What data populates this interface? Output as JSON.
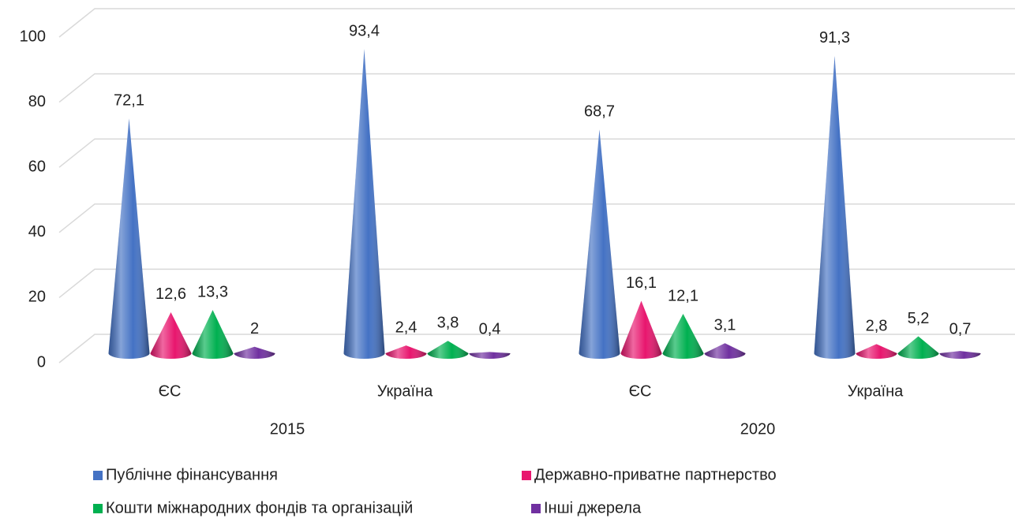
{
  "chart_data": {
    "type": "cone",
    "categories": [
      "ЄС",
      "Україна",
      "ЄС",
      "Україна"
    ],
    "category_groups": [
      "2015",
      "2020"
    ],
    "series": [
      {
        "name": "Публічне фінансування",
        "color": "#4472c4",
        "values": [
          72.1,
          93.4,
          68.7,
          91.3
        ],
        "value_labels": [
          "72,1",
          "93,4",
          "68,7",
          "91,3"
        ]
      },
      {
        "name": "Державно-приватне партнерство",
        "color": "#e8166e",
        "values": [
          12.6,
          2.4,
          16.1,
          2.8
        ],
        "value_labels": [
          "12,6",
          "2,4",
          "16,1",
          "2,8"
        ]
      },
      {
        "name": "Кошти міжнародних фондів та організацій",
        "color": "#00b050",
        "values": [
          13.3,
          3.8,
          12.1,
          5.2
        ],
        "value_labels": [
          "13,3",
          "3,8",
          "12,1",
          "5,2"
        ]
      },
      {
        "name": "Інші джерела",
        "color": "#7030a0",
        "values": [
          2,
          0.4,
          3.1,
          0.7
        ],
        "value_labels": [
          "2",
          "0,4",
          "3,1",
          "0,7"
        ]
      }
    ],
    "ylim": [
      0,
      100
    ],
    "yticks": [
      0,
      20,
      40,
      60,
      80,
      100
    ],
    "grid": true,
    "legend": "bottom"
  }
}
